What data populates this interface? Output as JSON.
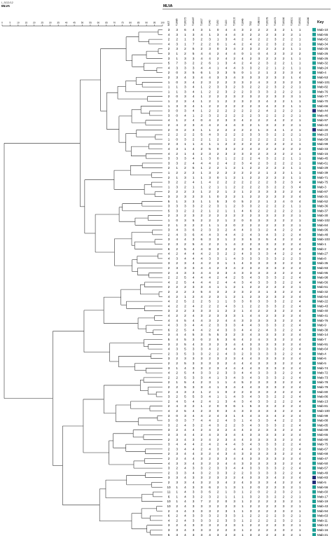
{
  "header": {
    "subtitle": "I_SG2/12",
    "app_name": "MLVA",
    "panel_title": "MLVA",
    "key_label": "Key"
  },
  "scale_ticks": [
    "0",
    "5",
    "10",
    "15",
    "20",
    "25",
    "30",
    "35",
    "40",
    "45",
    "50",
    "55",
    "60",
    "65",
    "70",
    "75",
    "80",
    "85",
    "90",
    "95",
    "100"
  ],
  "columns": [
    "MST",
    "T16/85",
    "T16/172",
    "T16/187",
    "T16/17",
    "T1/40",
    "T1/50",
    "T1/20",
    "T16/102",
    "T16/46",
    "T/52",
    "T1/B000",
    "T16/178",
    "T16/173",
    "T16/166",
    "T16/201",
    "T16/181",
    "T16/186"
  ],
  "colors": {
    "teal": "#1a9e94",
    "navy": "#1e2a78"
  },
  "rows": [
    {
      "v": "3 3 6 4 3 1 0 4 4 3 2 2 2 3 2 1 1",
      "label": "Mab-10",
      "color": "teal"
    },
    {
      "v": "4 3 1 3 4 1 3 4 4 3 2 2 2 3 2 2 1",
      "label": "Mab-55",
      "color": "teal"
    },
    {
      "v": "2 2 1 3 2 3 1 3 4 2 4 2 2 3 2 2 1",
      "label": "Mab-62",
      "color": "teal"
    },
    {
      "v": "4 3 1 7 2 2 0 1 4 2 4 2 2 3 2 2 1",
      "label": "Mab-34",
      "color": "teal"
    },
    {
      "v": "2 3 2 5 2 3 0 3 4 2 3 2 2 2 2 1 1",
      "label": "Mab-25",
      "color": "teal"
    },
    {
      "v": "3 1 2 5 4 4 2 4 4 0 1 0 4 2 3 2 2",
      "label": "Mab-26",
      "color": "teal"
    },
    {
      "v": "3 1 3 3 4 4 2 4 2 4 2 3 2 2 2 1 1",
      "label": "Mab-26",
      "color": "teal"
    },
    {
      "v": "5 7 3 2 2 6 1 3 4 2 4 2 3 2 2 1 1",
      "label": "Mab-32",
      "color": "teal"
    },
    {
      "v": "4 3 3 3 4 4 1 4 4 3 3 2 2 1 2 1 1",
      "label": "Mab-24",
      "color": "teal"
    },
    {
      "v": "2 0 3 5 6 1 3 3 5 0 1 2 1 2 2 3 4",
      "label": "Mab-4",
      "color": "teal"
    },
    {
      "v": "2 3 4 3 4 4 3 3 4 3 3 3 2 3 2 1 4",
      "label": "Mab-53",
      "color": "teal"
    },
    {
      "v": "1 0 3 4 2 3 2 2 3 3 2 4 3 2 3 2 3",
      "label": "Mab-101",
      "color": "teal"
    },
    {
      "v": "1 1 3 4 1 2 3 3 2 3 2 2 2 3 2 2 1",
      "label": "Mab-82",
      "color": "teal"
    },
    {
      "v": "1 1 3 4 1 2 2 3 2 2 3 3 3 2 2 2 1",
      "label": "Mab-76",
      "color": "teal"
    },
    {
      "v": "2 0 3 4 1 2 2 2 3 2 3 2 2 3 2 3 1",
      "label": "Mab-77",
      "color": "teal"
    },
    {
      "v": "1 2 3 4 1 2 1 2 2 3 2 3 4 2 2 1 1",
      "label": "Mab-70",
      "color": "teal"
    },
    {
      "v": "1 3 3 4 1 2 2 2 2 2 2 3 4 2 2 1 1",
      "label": "Mab-66",
      "color": "teal"
    },
    {
      "v": "3 0 3 4 1 2 2 2 2 2 2 2 4 2 2 2 1",
      "label": "Mab-44",
      "color": "navy"
    },
    {
      "v": "3 0 4 1 2 3 2 2 2 2 2 3 2 2 2 2 1",
      "label": "Mab-46",
      "color": "teal"
    },
    {
      "v": "4 1 2 4 0 4 2 3 3 4 2 2 2 4 2 2 1",
      "label": "Mab-97",
      "color": "teal"
    },
    {
      "v": "2 4 2 3 4 4 2 4 4 3 2 1 3 2 2 2 1",
      "label": "Mab-42",
      "color": "teal"
    },
    {
      "v": "2 0 2 3 1 1 2 2 2 2 2 1 3 4 1 2 1",
      "label": "Mab-20",
      "color": "navy"
    },
    {
      "v": "2 2 2 2 5 4 3 2 2 2 3 3 3 2 2 2 1",
      "label": "Mab-23",
      "color": "teal"
    },
    {
      "v": "1 0 3 2 2 1 2 1 2 2 2 2 2 2 2 1 1",
      "label": "Mab-58",
      "color": "teal"
    },
    {
      "v": "2 3 1 1 4 1 1 2 2 2 2 2 2 2 2 2 1",
      "label": "Mab-99",
      "color": "teal"
    },
    {
      "v": "4 3 1 4 2 5 0 3 2 2 4 2 2 2 2 2 2",
      "label": "Mab-33",
      "color": "teal"
    },
    {
      "v": "4 2 1 4 2 3 2 3 2 3 3 2 3 2 2 2 1",
      "label": "Mab-15",
      "color": "teal"
    },
    {
      "v": "3 3 3 4 1 3 0 1 2 2 2 4 3 2 2 1 1",
      "label": "Mab-45",
      "color": "teal"
    },
    {
      "v": "3 3 2 4 4 4 2 4 2 3 4 2 3 2 2 2 1",
      "label": "Mab-61",
      "color": "teal"
    },
    {
      "v": "2 1 2 5 1 2 2 1 2 1 2 2 2 2 2 1 1",
      "label": "Mab-29",
      "color": "teal"
    },
    {
      "v": "1 2 2 2 1 3 2 2 2 2 2 2 1 2 2 1 1",
      "label": "Mab-39",
      "color": "teal"
    },
    {
      "v": "2 1 3 1 1 3 0 1 2 1 2 2 2 2 2 1 1",
      "label": "Mab-71",
      "color": "teal"
    },
    {
      "v": "3 2 2 4 1 4 2 2 2 2 2 2 2 3 2 3 4",
      "label": "Mab-75",
      "color": "teal"
    },
    {
      "v": "1 3 2 1 1 2 1 1 2 2 2 2 3 2 2 3 4",
      "label": "Mab-3",
      "color": "teal"
    },
    {
      "v": "2 2 2 2 1 2 2 1 2 1 2 3 3 3 2 2 4",
      "label": "Mab-87",
      "color": "teal"
    },
    {
      "v": "3 2 3 2 3 1 0 2 2 1 2 2 2 2 2 2 4",
      "label": "Mab-31",
      "color": "teal"
    },
    {
      "v": "5 1 3 3 1 1 5 3 0 5 2 2 1 2 4 0 4",
      "label": "Mab-52",
      "color": "teal"
    },
    {
      "v": "3 3 3 3 2 2 3 1 2 3 3 2 2 2 2 1 1",
      "label": "Mab-36",
      "color": "teal"
    },
    {
      "v": "5 3 2 2 2 1 2 1 1 4 6 2 2 2 2 2 1",
      "label": "Mab-37",
      "color": "teal"
    },
    {
      "v": "2 3 2 3 2 2 2 2 2 2 2 3 3 2 2 2 1",
      "label": "Mab-30",
      "color": "teal"
    },
    {
      "v": "1 0 3 5 2 2 2 1 2 0 0 3 3 2 2 2 1",
      "label": "Mab-102",
      "color": "teal"
    },
    {
      "v": "2 1 3 2 2 1 1 2 0 2 2 2 2 2 2 2 1",
      "label": "Mab-84",
      "color": "teal"
    },
    {
      "v": "3 4 3 6 2 3 3 2 4 4 3 3 2 4 2 2 4",
      "label": "Mab-96",
      "color": "teal"
    },
    {
      "v": "2 4 3 6 4 4 3 4 4 2 4 3 4 3 2 2 4",
      "label": "Mab-48",
      "color": "teal"
    },
    {
      "v": "3 4 4 3 6 3 3 1 2 3 5 3 5 4 2 2 4",
      "label": "Mab-103",
      "color": "teal"
    },
    {
      "v": "2 3 2 5 4 2 2 1 4 2 2 3 3 2 2 2 4",
      "label": "Mab-1",
      "color": "teal"
    },
    {
      "v": "6 2 5 4 4 8 3 2 2 3 0 3 3 2 2 2 4",
      "label": "Mab-2",
      "color": "teal"
    },
    {
      "v": "4 2 4 4 4 2 3 2 2 4 3 3 3 4 2 2 4",
      "label": "Mab-27",
      "color": "teal"
    },
    {
      "v": "4 3 4 4 4 3 3 1 4 3 3 3 3 3 2 2 3",
      "label": "Mab-8",
      "color": "teal"
    },
    {
      "v": "3 2 3 4 4 2 3 1 1 4 3 3 3 3 2 2 3",
      "label": "Mab-35",
      "color": "teal"
    },
    {
      "v": "2 3 3 3 4 4 2 3 4 2 3 2 3 3 2 2 4",
      "label": "Mab-93",
      "color": "teal"
    },
    {
      "v": "2 4 3 3 4 4 3 3 4 3 3 3 3 2 2 2 4",
      "label": "Mab-95",
      "color": "teal"
    },
    {
      "v": "2 2 5 4 4 4 2 4 2 5 4 3 3 3 2 2 4",
      "label": "Mab-98",
      "color": "teal"
    },
    {
      "v": "4 2 5 4 4 4 2 4 4 3 4 3 3 3 2 2 4",
      "label": "Mab-56",
      "color": "teal"
    },
    {
      "v": "2 2 2 3 3 4 1 1 2 1 2 2 2 2 2 2 1",
      "label": "Mab-51",
      "color": "teal"
    },
    {
      "v": "2 2 2 2 5 4 3 2 2 3 2 3 1 3 2 2 4",
      "label": "Mab-32",
      "color": "teal"
    },
    {
      "v": "4 2 1 2 4 2 3 1 2 1 2 3 2 3 2 2 4",
      "label": "Mab-54",
      "color": "teal"
    },
    {
      "v": "4 2 5 2 2 5 1 1 3 3 0 3 3 3 2 2 4",
      "label": "Mab-22",
      "color": "teal"
    },
    {
      "v": "4 2 2 4 2 2 2 4 3 1 2 2 3 3 2 2 4",
      "label": "Mab-43",
      "color": "teal"
    },
    {
      "v": "3 2 2 3 3 3 1 2 2 1 4 2 2 3 2 2 4",
      "label": "Mab-40",
      "color": "teal"
    },
    {
      "v": "4 2 2 4 3 2 3 3 3 1 4 4 2 3 2 2 4",
      "label": "Mab-41",
      "color": "teal"
    },
    {
      "v": "4 4 5 4 4 3 2 4 4 3 3 3 3 3 2 2 4",
      "label": "Mab-76",
      "color": "teal"
    },
    {
      "v": "4 3 3 4 4 2 3 3 3 4 4 3 3 3 2 2 4",
      "label": "Mab-9",
      "color": "teal"
    },
    {
      "v": "6 2 5 4 4 2 4 3 3 4 4 2 4 3 2 2 4",
      "label": "Mab-38",
      "color": "teal"
    },
    {
      "v": "3 4 4 5 3 5 5 3 2 3 4 3 3 3 2 2 4",
      "label": "Mab-14",
      "color": "teal"
    },
    {
      "v": "5 4 5 3 0 2 5 3 6 4 2 4 3 3 2 2 4",
      "label": "Mab-7",
      "color": "teal"
    },
    {
      "v": "3 2 5 4 3 3 2 3 4 4 3 3 3 3 2 2 4",
      "label": "Mab-91",
      "color": "teal"
    },
    {
      "v": "4 3 5 3 3 4 2 4 4 4 3 3 3 3 2 2 4",
      "label": "Mab-64",
      "color": "teal"
    },
    {
      "v": "2 3 5 3 3 2 2 4 3 2 3 3 3 3 2 2 4",
      "label": "Mab-4",
      "color": "teal"
    },
    {
      "v": "3 2 3 3 3 2 3 2 3 4 4 3 3 3 2 2 4",
      "label": "Mab-6",
      "color": "teal"
    },
    {
      "v": "2 2 5 3 3 3 3 2 4 4 4 3 3 3 2 2 4",
      "label": "Mab-5",
      "color": "teal"
    },
    {
      "v": "3 1 4 3 3 2 3 4 4 4 4 3 3 3 2 2 4",
      "label": "Mab-74",
      "color": "teal"
    },
    {
      "v": "4 2 5 4 3 3 2 3 3 4 4 3 3 3 2 2 4",
      "label": "Mab-72",
      "color": "teal"
    },
    {
      "v": "2 2 5 3 3 4 1 3 4 3 4 3 3 3 2 2 4",
      "label": "Mab-73",
      "color": "teal"
    },
    {
      "v": "2 1 5 4 2 3 1 1 4 5 2 3 3 3 2 2 4",
      "label": "Mab-78",
      "color": "teal"
    },
    {
      "v": "2 2 5 3 3 4 1 3 4 4 4 3 3 3 2 2 4",
      "label": "Mab-79",
      "color": "teal"
    },
    {
      "v": "2 4 3 2 1 2 1 0 2 2 3 3 3 2 2 2 4",
      "label": "Mab-80",
      "color": "teal"
    },
    {
      "v": "3 2 5 5 3 4 1 1 4 3 4 3 3 2 2 2 4",
      "label": "Mab-86",
      "color": "teal"
    },
    {
      "v": "2 4 5 4 2 4 1 3 4 3 4 3 3 2 2 2 4",
      "label": "Mab-13",
      "color": "teal"
    },
    {
      "v": "2 4 3 2 1 2 0 0 6 1 5 3 3 2 2 2 4",
      "label": "Mab-81",
      "color": "teal"
    },
    {
      "v": "4 2 5 4 2 3 0 3 4 3 3 3 3 3 2 2 4",
      "label": "Mab-100",
      "color": "teal"
    },
    {
      "v": "3 0 3 4 4 2 4 3 1 4 4 3 3 4 2 2 4",
      "label": "Mab-99",
      "color": "teal"
    },
    {
      "v": "3 0 3 7 4 4 2 4 3 1 4 3 3 4 2 2 3",
      "label": "Mab-88",
      "color": "teal"
    },
    {
      "v": "3 2 4 3 2 4 3 2 2 3 4 3 3 3 2 2 4",
      "label": "Mab-85",
      "color": "teal"
    },
    {
      "v": "3 2 4 4 2 4 3 2 4 4 3 2 3 3 2 2 4",
      "label": "Mab-89",
      "color": "teal"
    },
    {
      "v": "3 3 4 4 2 4 3 3 4 4 3 3 3 3 2 2 4",
      "label": "Mab-65",
      "color": "teal"
    },
    {
      "v": "2 3 4 3 2 4 2 3 4 4 3 3 3 3 2 2 4",
      "label": "Mab-90",
      "color": "teal"
    },
    {
      "v": "3 4 4 4 2 4 2 4 4 3 4 3 3 3 2 2 4",
      "label": "Mab-75",
      "color": "teal"
    },
    {
      "v": "2 3 4 4 2 4 3 2 4 4 4 3 3 3 2 2 4",
      "label": "Mab-67",
      "color": "teal"
    },
    {
      "v": "2 3 4 4 3 2 4 3 4 3 3 3 3 3 2 2 4",
      "label": "Mab-68",
      "color": "teal"
    },
    {
      "v": "2 2 4 4 3 2 3 3 4 4 3 3 3 3 2 2 4",
      "label": "Mab-47",
      "color": "teal"
    },
    {
      "v": "4 3 3 4 3 2 3 4 4 3 3 3 3 3 2 2 4",
      "label": "Mab-50",
      "color": "teal"
    },
    {
      "v": "3 2 4 3 3 2 3 3 4 4 3 3 3 3 2 2 4",
      "label": "Mab-57",
      "color": "teal"
    },
    {
      "v": "2 3 3 4 3 2 3 3 2 2 3 3 3 3 2 2 4",
      "label": "Mab-49",
      "color": "teal"
    },
    {
      "v": "3 3 4 3 3 2 3 2 2 4 3 3 3 4 2 2 4",
      "label": "Mab-83",
      "color": "navy"
    },
    {
      "v": "2 3 3 4 3 2 3 4 2 4 3 3 3 4 2 2 4",
      "label": "Mab-5",
      "color": "navy"
    },
    {
      "v": "10 1 4 3 3 6 2 1 3 1 2 0 2 2 3 2 1",
      "label": "Mab-56",
      "color": "teal"
    },
    {
      "v": "11 1 4 3 3 6 2 1 3 1 2 0 2 2 3 2 1",
      "label": "Mab-60",
      "color": "teal"
    },
    {
      "v": "6 1 4 3 2 3 2 1 1 1 3 2 3 2 2 2 1",
      "label": "Mab-17",
      "color": "teal"
    },
    {
      "v": "10 1 4 3 7 2 2 0 3 1 2 2 2 2 3 2 1",
      "label": "Mab-19",
      "color": "teal"
    },
    {
      "v": "10 2 4 3 3 3 2 2 3 1 2 2 2 2 3 2 1",
      "label": "Mab-43",
      "color": "teal"
    },
    {
      "v": "2 4 4 3 3 3 2 3 1 1 3 2 2 2 3 2 1",
      "label": "Mab-94",
      "color": "teal"
    },
    {
      "v": "6 2 4 3 3 3 2 3 3 1 2 2 2 2 3 2 1",
      "label": "Mab-63",
      "color": "teal"
    },
    {
      "v": "4 2 4 3 3 3 2 3 3 1 2 2 2 2 3 2 1",
      "label": "Mab-11",
      "color": "teal"
    },
    {
      "v": "3 2 4 3 3 3 2 2 3 1 2 2 2 2 3 2 1",
      "label": "Mab-12",
      "color": "teal"
    },
    {
      "v": "3 3 4 3 3 3 2 2 3 1 2 2 2 2 3 2 1",
      "label": "Mab-16",
      "color": "teal"
    },
    {
      "v": "5 3 4 3 3 4 3 2 3 1 3 2 2 2 3 2 1",
      "label": "Mab-21",
      "color": "teal"
    }
  ]
}
